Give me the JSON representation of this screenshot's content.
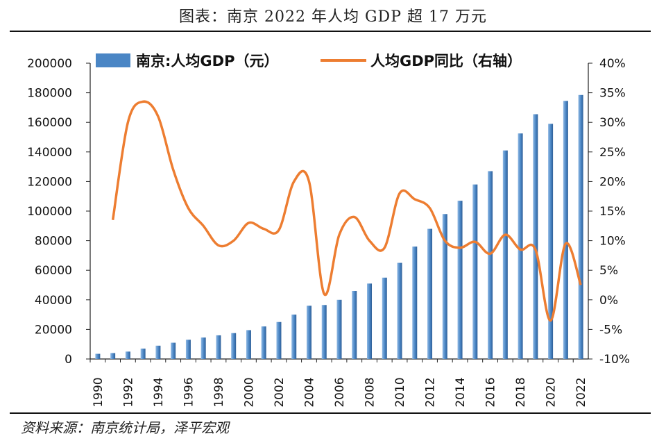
{
  "header": {
    "title": "图表：南京 2022 年人均 GDP 超 17 万元"
  },
  "footer": {
    "source": "资料来源：南京统计局，泽平宏观"
  },
  "colors": {
    "bar": "#4a86c5",
    "line": "#ed7d31",
    "axis": "#222222"
  },
  "chart_data": {
    "type": "bar+line",
    "title": "南京 2022 年人均 GDP 超 17 万元",
    "legend": [
      "南京:人均GDP（元）",
      "人均GDP同比（右轴）"
    ],
    "legend_position": "top",
    "x": [
      1990,
      1991,
      1992,
      1993,
      1994,
      1995,
      1996,
      1997,
      1998,
      1999,
      2000,
      2001,
      2002,
      2003,
      2004,
      2005,
      2006,
      2007,
      2008,
      2009,
      2010,
      2011,
      2012,
      2013,
      2014,
      2015,
      2016,
      2017,
      2018,
      2019,
      2020,
      2021,
      2022
    ],
    "x_tick_labels": [
      "1990",
      "1992",
      "1994",
      "1996",
      "1998",
      "2000",
      "2002",
      "2004",
      "2006",
      "2008",
      "2010",
      "2012",
      "2014",
      "2016",
      "2018",
      "2020",
      "2022"
    ],
    "y_left": {
      "min": 0,
      "max": 200000,
      "step": 20000,
      "ticks": [
        "0",
        "20000",
        "40000",
        "60000",
        "80000",
        "100000",
        "120000",
        "140000",
        "160000",
        "180000",
        "200000"
      ]
    },
    "y_right": {
      "min": -10,
      "max": 40,
      "step": 5,
      "ticks": [
        "-10%",
        "-5%",
        "0%",
        "5%",
        "10%",
        "15%",
        "20%",
        "25%",
        "30%",
        "35%",
        "40%"
      ]
    },
    "series": [
      {
        "name": "南京:人均GDP（元）",
        "type": "bar",
        "axis": "left",
        "values": [
          3500,
          4000,
          5000,
          7000,
          9000,
          11000,
          13000,
          14500,
          16000,
          17500,
          19500,
          22000,
          25000,
          30000,
          36000,
          36500,
          40000,
          46000,
          51000,
          55000,
          65000,
          76000,
          88000,
          98000,
          107000,
          118000,
          127000,
          141000,
          152500,
          165500,
          159000,
          174500,
          178500
        ]
      },
      {
        "name": "人均GDP同比（右轴）",
        "type": "line",
        "axis": "right",
        "values": [
          null,
          13.5,
          30,
          33.5,
          31,
          22,
          15.5,
          12.5,
          9.2,
          10,
          13,
          12,
          11.8,
          20,
          20,
          1,
          11,
          14,
          10,
          8.8,
          18,
          17,
          15.5,
          10,
          8.8,
          9.8,
          7.8,
          11,
          8.5,
          8.5,
          -3.5,
          9.5,
          2.5
        ]
      }
    ]
  }
}
